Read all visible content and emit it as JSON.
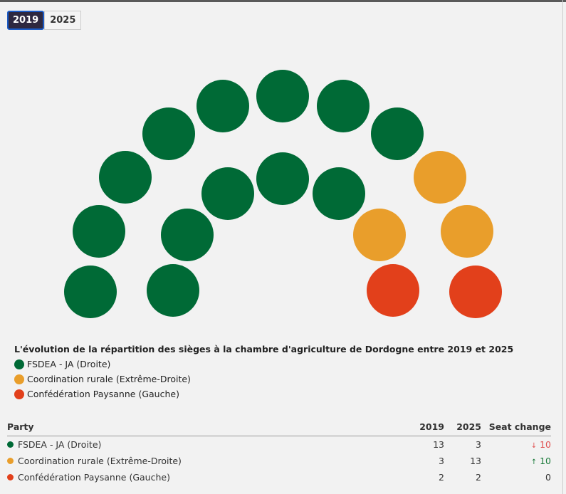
{
  "tabs": [
    {
      "label": "2019",
      "active": true
    },
    {
      "label": "2025",
      "active": false
    }
  ],
  "chart_data": {
    "type": "parliament",
    "title": "L'évolution de la répartition des sièges à la chambre d'agriculture de Dordogne entre 2019 et 2025",
    "selected": "2019",
    "parties": [
      {
        "name": "FSDEA - JA (Droite)",
        "color": "#006a36",
        "seats_2019": 13,
        "seats_2025": 3,
        "change": "10",
        "direction": "down"
      },
      {
        "name": "Coordination rurale (Extrême-Droite)",
        "color": "#e99e2b",
        "seats_2019": 3,
        "seats_2025": 13,
        "change": "10",
        "direction": "up"
      },
      {
        "name": "Confédération Paysanne (Gauche)",
        "color": "#e2401b",
        "seats_2019": 2,
        "seats_2025": 2,
        "change": "0",
        "direction": "none"
      }
    ]
  },
  "table": {
    "headers": [
      "Party",
      "2019",
      "2025",
      "Seat change"
    ],
    "arrows": {
      "down": "↓",
      "up": "↑",
      "none": ""
    }
  }
}
